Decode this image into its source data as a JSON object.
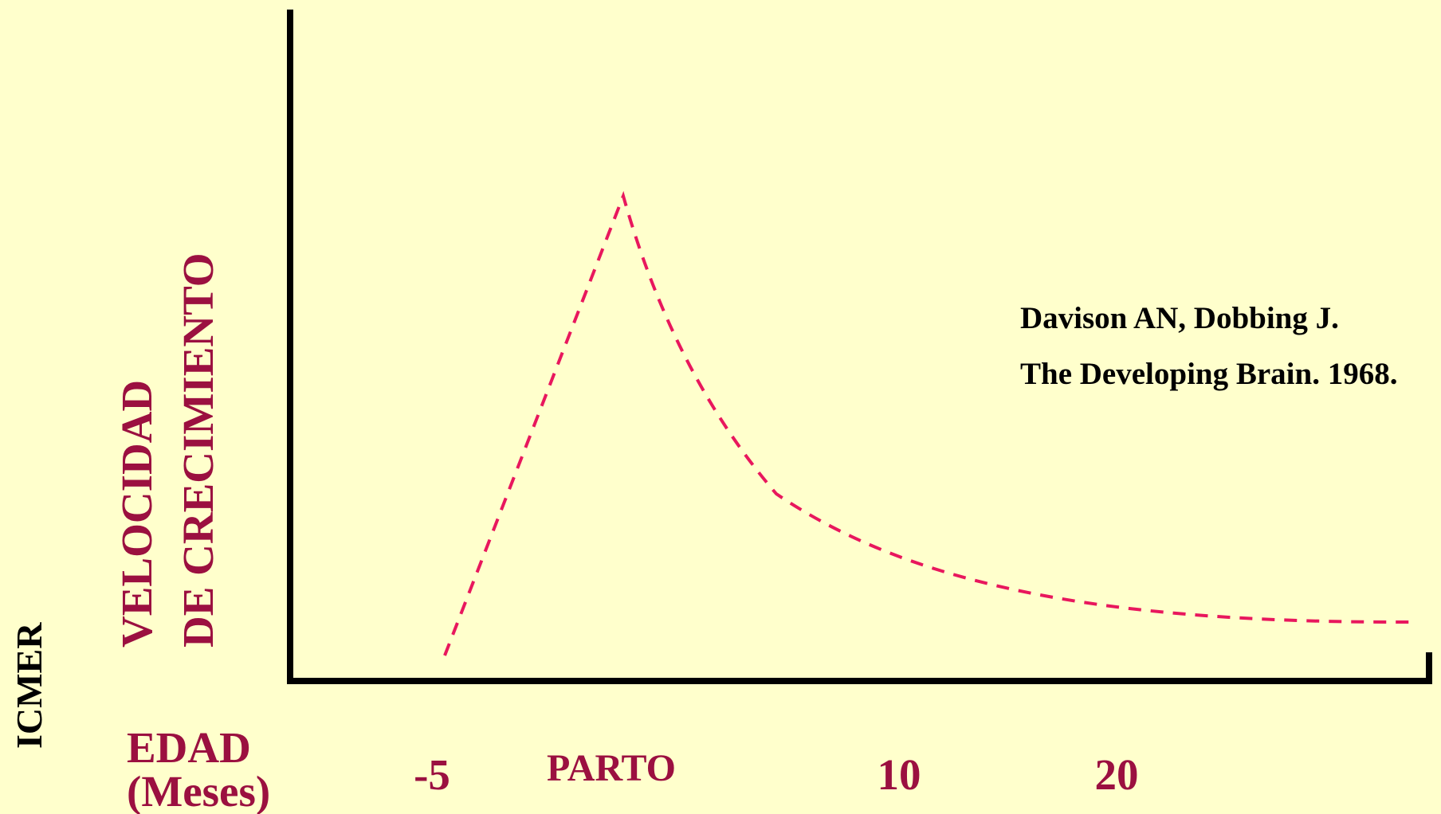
{
  "y_label": [
    "VELOCIDAD",
    "DE CRECIMIENTO"
  ],
  "x_label": [
    "EDAD",
    "(Meses)"
  ],
  "x_ticks": [
    "-5",
    "PARTO",
    "10",
    "20"
  ],
  "citation": [
    "Davison AN, Dobbing J.",
    "The Developing Brain. 1968."
  ],
  "watermark": "ICMER"
}
